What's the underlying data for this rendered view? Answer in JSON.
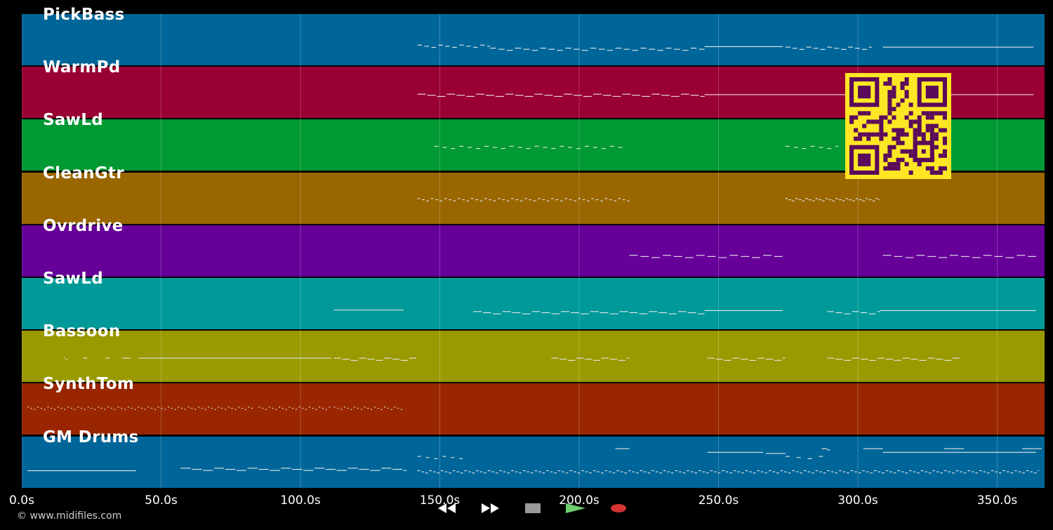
{
  "tracks": [
    {
      "name": "PickBass",
      "color": "#006699"
    },
    {
      "name": "WarmPd",
      "color": "#990033"
    },
    {
      "name": "SawLd",
      "color": "#009933"
    },
    {
      "name": "CleanGtr",
      "color": "#996600"
    },
    {
      "name": "Ovrdrive",
      "color": "#660099"
    },
    {
      "name": "SawLd",
      "color": "#009999"
    },
    {
      "name": "Bassoon",
      "color": "#999900"
    },
    {
      "name": "SynthTom",
      "color": "#992600"
    },
    {
      "name": "GM Drums",
      "color": "#006699"
    }
  ],
  "timeline": {
    "ticks": [
      "0.0s",
      "50.0s",
      "100.0s",
      "150.0s",
      "200.0s",
      "250.0s",
      "300.0s",
      "350.0s"
    ],
    "tick_values": [
      0,
      50,
      100,
      150,
      200,
      250,
      300,
      350
    ],
    "range_seconds": [
      0,
      367
    ]
  },
  "copyright": "© www.midifiles.com",
  "transport": {
    "buttons": [
      {
        "name": "rewind-button",
        "icon": "rewind-icon",
        "color": "#1a1a1a"
      },
      {
        "name": "fast-forward-button",
        "icon": "fast-forward-icon",
        "color": "#1a1a1a"
      },
      {
        "name": "stop-button",
        "icon": "stop-icon",
        "color": "#3a3a3a"
      },
      {
        "name": "play-button",
        "icon": "play-icon",
        "color": "#1e5e1e"
      },
      {
        "name": "record-button",
        "icon": "record-icon",
        "color": "#3a1414"
      }
    ]
  },
  "qr_code": {
    "icon": "qr-code-icon",
    "fg": "#5a0a5a",
    "bg": "#fde725"
  }
}
